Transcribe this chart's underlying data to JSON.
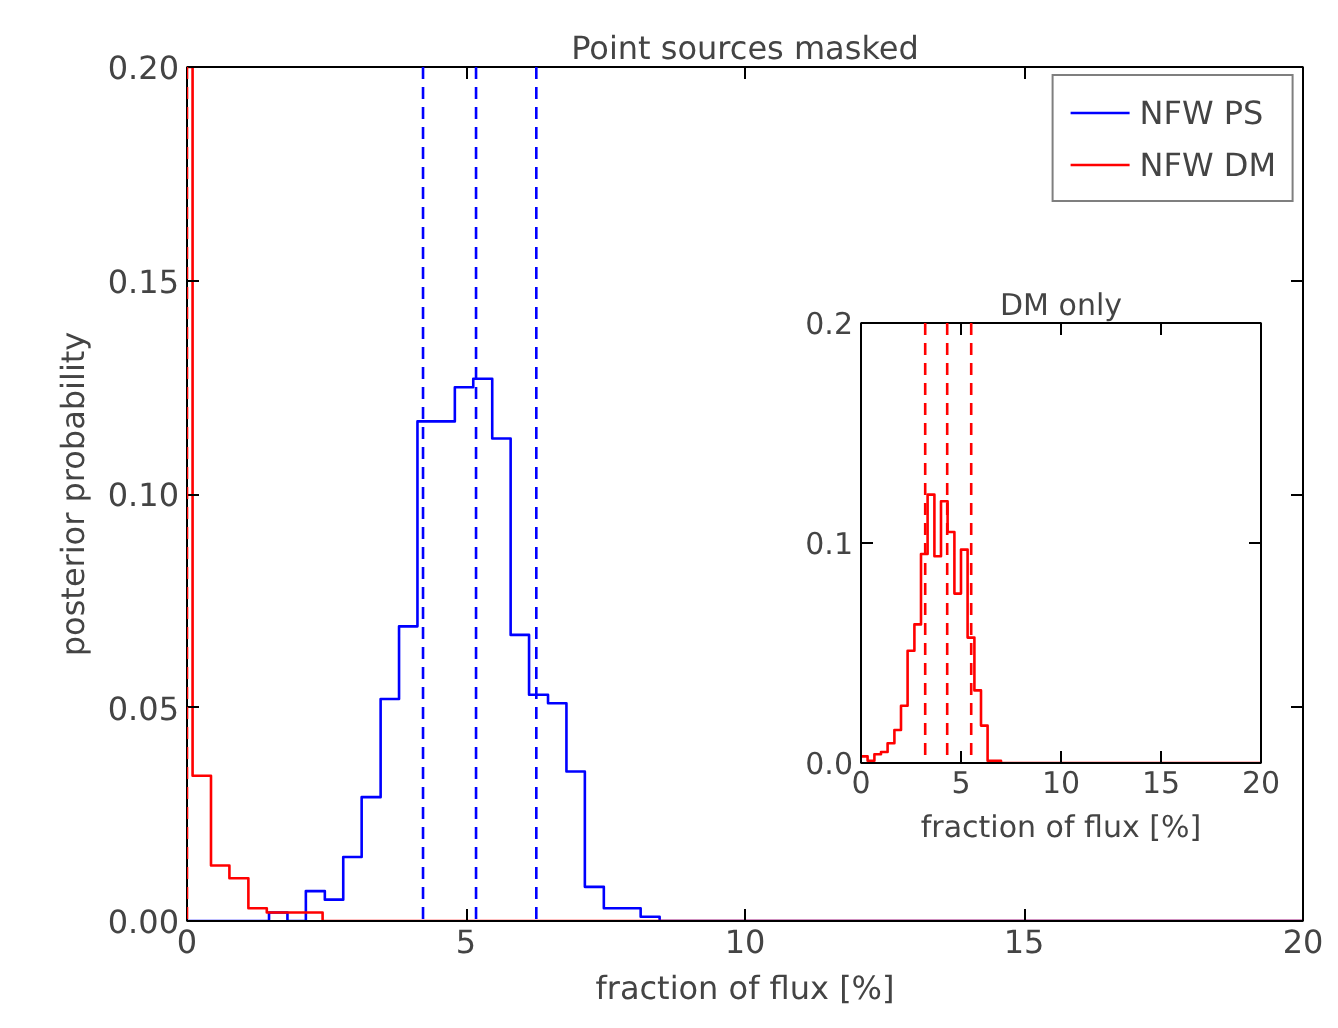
{
  "chart_data": [
    {
      "type": "step",
      "title": "Point sources masked",
      "xlabel": "fraction of flux [%]",
      "ylabel": "posterior probability",
      "series": [
        {
          "name": "NFW PS",
          "color": "#0000ff",
          "x": [
            0,
            1.47,
            1.8,
            2.13,
            2.47,
            2.8,
            3.13,
            3.47,
            3.8,
            4.13,
            4.47,
            4.8,
            5.13,
            5.47,
            5.8,
            6.13,
            6.47,
            6.8,
            7.13,
            7.47,
            7.8,
            8.13,
            8.47,
            20
          ],
          "values": [
            0,
            0.002,
            0,
            0.007,
            0.005,
            0.015,
            0.029,
            0.052,
            0.069,
            0.117,
            0.117,
            0.125,
            0.127,
            0.113,
            0.067,
            0.053,
            0.051,
            0.035,
            0.008,
            0.003,
            0.003,
            0.001,
            0,
            0
          ]
        },
        {
          "name": "NFW DM",
          "color": "#ff0000",
          "x": [
            0,
            0.1,
            0.43,
            0.76,
            1.1,
            1.43,
            1.76,
            2.1,
            2.43,
            20
          ],
          "values": [
            0.2,
            0.034,
            0.013,
            0.01,
            0.003,
            0.002,
            0.002,
            0.002,
            0,
            0
          ]
        }
      ],
      "ref_lines": [
        {
          "axis": "x",
          "value": 4.23,
          "color": "#0000ff",
          "line_style": "dashed"
        },
        {
          "axis": "x",
          "value": 5.18,
          "color": "#0000ff",
          "line_style": "dashed"
        },
        {
          "axis": "x",
          "value": 6.26,
          "color": "#0000ff",
          "line_style": "dashed"
        },
        {
          "axis": "x",
          "value": 0,
          "color": "#ff0000",
          "line_style": "dashed"
        }
      ],
      "xlim": [
        0,
        20
      ],
      "xticks": [
        0,
        5,
        10,
        15,
        20
      ],
      "ylim": [
        0,
        0.2
      ],
      "yticks": [
        {
          "value": 0,
          "label": "0.00"
        },
        {
          "value": 0.05,
          "label": "0.05"
        },
        {
          "value": 0.1,
          "label": "0.10"
        },
        {
          "value": 0.15,
          "label": "0.15"
        },
        {
          "value": 0.2,
          "label": "0.20"
        }
      ],
      "legend": "top right",
      "grid": false
    },
    {
      "type": "step",
      "title": "DM only",
      "xlabel": "fraction of flux [%]",
      "series": [
        {
          "color": "#ff0000",
          "x": [
            0,
            0.33,
            0.67,
            1.0,
            1.33,
            1.67,
            2.0,
            2.33,
            2.67,
            3.0,
            3.33,
            3.67,
            4.0,
            4.33,
            4.67,
            5.0,
            5.33,
            5.67,
            6.0,
            6.33,
            6.67,
            7.0,
            20
          ],
          "values": [
            0.003,
            0.001,
            0.004,
            0.005,
            0.009,
            0.015,
            0.026,
            0.051,
            0.063,
            0.095,
            0.122,
            0.094,
            0.119,
            0.105,
            0.077,
            0.097,
            0.057,
            0.033,
            0.017,
            0.001,
            0.001,
            0,
            0
          ]
        }
      ],
      "ref_lines": [
        {
          "axis": "x",
          "value": 3.21,
          "color": "#ff0000",
          "line_style": "dashed"
        },
        {
          "axis": "x",
          "value": 4.31,
          "color": "#ff0000",
          "line_style": "dashed"
        },
        {
          "axis": "x",
          "value": 5.51,
          "color": "#ff0000",
          "line_style": "dashed"
        }
      ],
      "xlim": [
        0,
        20
      ],
      "xticks": [
        0,
        5,
        10,
        15,
        20
      ],
      "ylim": [
        0,
        0.2
      ],
      "yticks": [
        {
          "value": 0,
          "label": "0.0"
        },
        {
          "value": 0.1,
          "label": "0.1"
        },
        {
          "value": 0.2,
          "label": "0.2"
        }
      ],
      "legend": false,
      "grid": false
    }
  ]
}
